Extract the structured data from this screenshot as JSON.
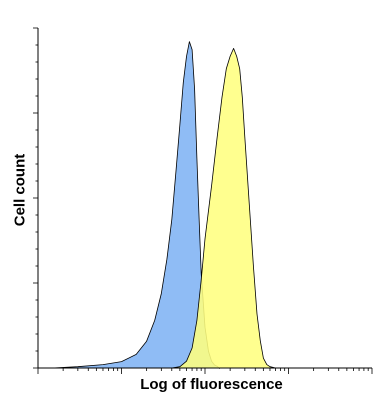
{
  "chart_data": {
    "type": "area",
    "title": "",
    "xlabel": "Log of fluorescence",
    "ylabel": "Cell count",
    "xscale": "log",
    "xlim": [
      1,
      10000
    ],
    "ylim": [
      0,
      100
    ],
    "grid": false,
    "legend": "none",
    "series": [
      {
        "color": "#8fbcf5",
        "x": [
          1.5,
          3,
          6,
          10,
          15,
          20,
          25,
          30,
          35,
          40,
          45,
          50,
          55,
          60,
          65,
          70,
          75,
          80,
          85,
          90,
          100,
          110,
          120,
          130,
          140,
          150
        ],
        "values": [
          0,
          0.5,
          1,
          2,
          4,
          8,
          14,
          22,
          32,
          44,
          58,
          72,
          84,
          92,
          96,
          94,
          82,
          62,
          44,
          28,
          12,
          5,
          2,
          1,
          0.5,
          0
        ]
      },
      {
        "color": "#ffff80",
        "x": [
          40,
          50,
          60,
          70,
          80,
          90,
          100,
          120,
          140,
          160,
          180,
          200,
          220,
          240,
          260,
          280,
          300,
          340,
          380,
          420,
          460,
          500,
          550,
          600,
          700
        ],
        "values": [
          0,
          0.5,
          2,
          6,
          14,
          26,
          38,
          54,
          68,
          80,
          88,
          92,
          94,
          92,
          88,
          80,
          68,
          48,
          30,
          16,
          8,
          3,
          1,
          0.5,
          0
        ]
      }
    ]
  }
}
